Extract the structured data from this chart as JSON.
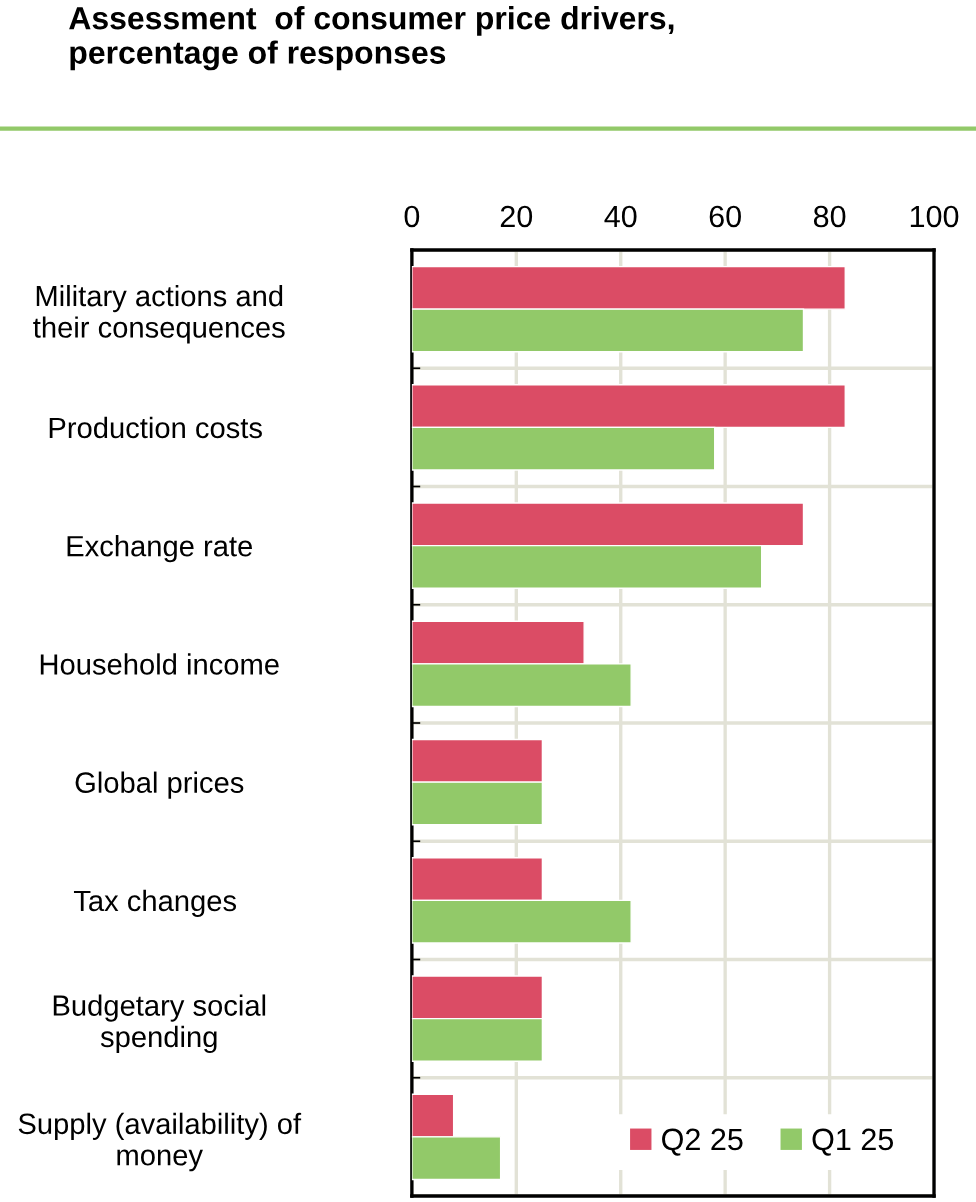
{
  "chart_data": {
    "type": "bar",
    "orientation": "horizontal",
    "title": "Assessment  of consumer price drivers,\npercentage of responses",
    "categories": [
      "Military actions and\ntheir consequences",
      "Production costs ",
      "Exchange rate",
      "Household income",
      "Global prices",
      "Tax changes ",
      "Budgetary social\nspending",
      "Supply (availability) of\nmoney"
    ],
    "series": [
      {
        "name": "Q2 25",
        "color": "#db4c65",
        "values": [
          83,
          83,
          75,
          33,
          25,
          25,
          25,
          8
        ]
      },
      {
        "name": "Q1 25",
        "color": "#92c969",
        "values": [
          75,
          58,
          67,
          42,
          25,
          42,
          25,
          17
        ]
      }
    ],
    "xlim": [
      0,
      100
    ],
    "xticks": [
      0,
      20,
      40,
      60,
      80,
      100
    ],
    "grid": true,
    "legend": "bottom right"
  }
}
